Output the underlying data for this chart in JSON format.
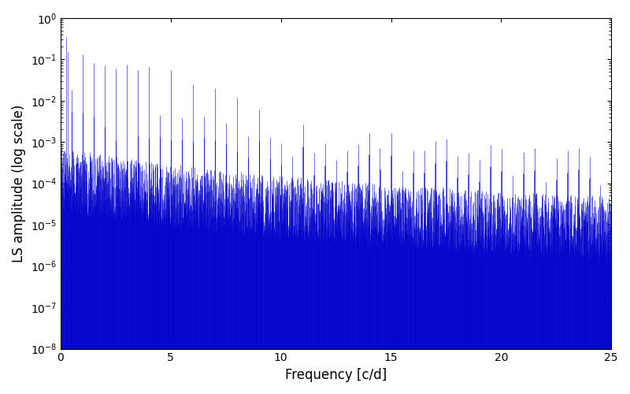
{
  "xlabel": "Frequency [c/d]",
  "ylabel": "LS amplitude (log scale)",
  "xlim": [
    0,
    25
  ],
  "ylim": [
    1e-08,
    1.0
  ],
  "line_color": "#0000cc",
  "background_color": "#ffffff",
  "figsize": [
    8.0,
    5.0
  ],
  "dpi": 100,
  "freq_max": 25.0,
  "n_points": 3000,
  "seed": 7
}
